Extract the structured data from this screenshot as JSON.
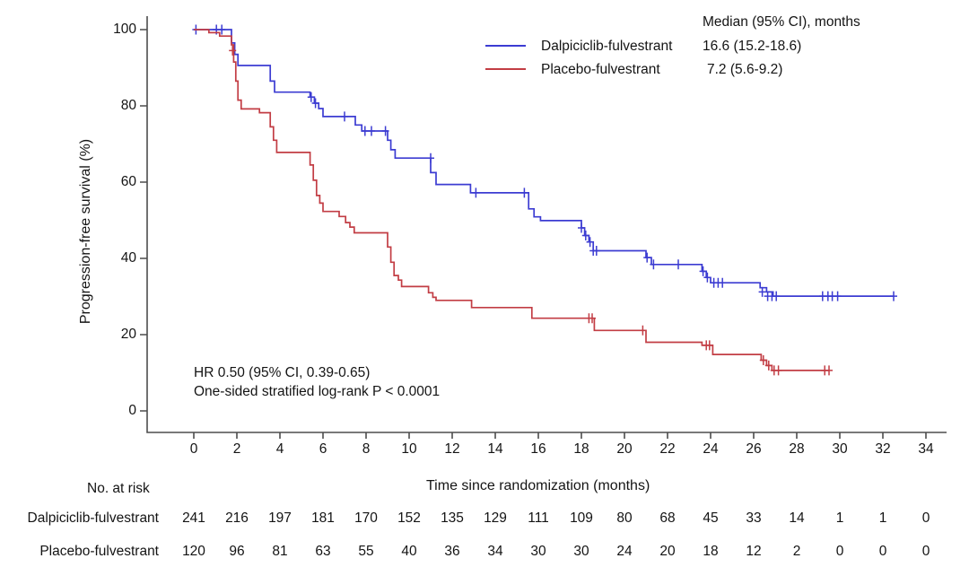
{
  "figure": {
    "y_axis": {
      "label": "Progression-free survival (%)",
      "ticks": [
        0,
        20,
        40,
        60,
        80,
        100
      ]
    },
    "x_axis": {
      "label": "Time since randomization (months)",
      "ticks": [
        0,
        2,
        4,
        6,
        8,
        10,
        12,
        14,
        16,
        18,
        20,
        22,
        24,
        26,
        28,
        30,
        32,
        34
      ]
    },
    "legend": {
      "header": "Median (95% CI), months",
      "entries": [
        {
          "name": "Dalpiciclib-fulvestrant",
          "median": "16.6 (15.2-18.6)",
          "color": "#3c3cd2"
        },
        {
          "name": "Placebo-fulvestrant",
          "median": "7.2 (5.6-9.2)",
          "color": "#c23d44"
        }
      ]
    },
    "annotations": [
      "HR 0.50 (95% CI, 0.39-0.65)",
      "One-sided stratified log-rank P < 0.0001"
    ],
    "risk_table": {
      "title": "No. at risk",
      "rows": [
        {
          "name": "Dalpiciclib-fulvestrant",
          "values": [
            241,
            216,
            197,
            181,
            170,
            152,
            135,
            129,
            111,
            109,
            80,
            68,
            45,
            33,
            14,
            1,
            1,
            0
          ]
        },
        {
          "name": "Placebo-fulvestrant",
          "values": [
            120,
            96,
            81,
            63,
            55,
            40,
            36,
            34,
            30,
            30,
            24,
            20,
            18,
            12,
            2,
            0,
            0,
            0
          ]
        }
      ]
    },
    "colors": {
      "axis": "#4d4d4d",
      "text": "#141414"
    }
  },
  "chart_data": {
    "type": "line",
    "subtype": "kaplan-meier-step",
    "title": "",
    "xlabel": "Time since randomization (months)",
    "ylabel": "Progression-free survival (%)",
    "xlim": [
      0,
      34
    ],
    "ylim": [
      0,
      100
    ],
    "grid": false,
    "legend_position": "top-right",
    "x_ticks": [
      0,
      2,
      4,
      6,
      8,
      10,
      12,
      14,
      16,
      18,
      20,
      22,
      24,
      26,
      28,
      30,
      32,
      34
    ],
    "y_ticks": [
      0,
      20,
      40,
      60,
      80,
      100
    ],
    "series": [
      {
        "id": "dalpiciclib",
        "name": "Dalpiciclib-fulvestrant",
        "color": "#3c3cd2",
        "median_months": "16.6 (15.2-18.6)",
        "start": [
          0,
          100
        ],
        "end_time": 32.5,
        "steps": [
          [
            1.75,
            96.5
          ],
          [
            1.9,
            93.5
          ],
          [
            2.05,
            90.6
          ],
          [
            3.55,
            86.5
          ],
          [
            3.75,
            83.6
          ],
          [
            5.4,
            82.3
          ],
          [
            5.6,
            80.7
          ],
          [
            5.8,
            79.3
          ],
          [
            6.0,
            77.2
          ],
          [
            7.5,
            75.0
          ],
          [
            7.8,
            73.4
          ],
          [
            9.0,
            71.0
          ],
          [
            9.15,
            68.5
          ],
          [
            9.35,
            66.3
          ],
          [
            11.0,
            62.5
          ],
          [
            11.25,
            59.4
          ],
          [
            12.85,
            57.2
          ],
          [
            15.55,
            53.0
          ],
          [
            15.8,
            50.9
          ],
          [
            16.1,
            49.9
          ],
          [
            18.0,
            48.0
          ],
          [
            18.15,
            46.0
          ],
          [
            18.35,
            44.3
          ],
          [
            18.55,
            42.0
          ],
          [
            21.0,
            40.2
          ],
          [
            21.25,
            38.4
          ],
          [
            23.6,
            36.6
          ],
          [
            23.8,
            35.0
          ],
          [
            24.0,
            33.6
          ],
          [
            26.3,
            32.3
          ],
          [
            26.6,
            31.2
          ],
          [
            26.9,
            30.1
          ]
        ],
        "censors": [
          [
            0.1,
            100
          ],
          [
            1.05,
            100
          ],
          [
            1.3,
            100
          ],
          [
            5.45,
            82.3
          ],
          [
            5.65,
            80.7
          ],
          [
            7.0,
            77.2
          ],
          [
            7.95,
            73.4
          ],
          [
            8.25,
            73.4
          ],
          [
            8.9,
            73.4
          ],
          [
            11.0,
            66.3
          ],
          [
            13.1,
            57.2
          ],
          [
            15.35,
            57.2
          ],
          [
            18.0,
            48.0
          ],
          [
            18.2,
            46.0
          ],
          [
            18.4,
            44.3
          ],
          [
            18.55,
            42.0
          ],
          [
            18.7,
            42.0
          ],
          [
            21.05,
            40.2
          ],
          [
            21.35,
            38.4
          ],
          [
            22.5,
            38.4
          ],
          [
            23.65,
            36.6
          ],
          [
            23.85,
            35.0
          ],
          [
            24.15,
            33.6
          ],
          [
            24.35,
            33.6
          ],
          [
            24.55,
            33.6
          ],
          [
            26.4,
            31.2
          ],
          [
            26.65,
            30.1
          ],
          [
            26.85,
            30.1
          ],
          [
            27.05,
            30.1
          ],
          [
            29.2,
            30.1
          ],
          [
            29.45,
            30.1
          ],
          [
            29.65,
            30.1
          ],
          [
            29.9,
            30.1
          ],
          [
            32.5,
            30.1
          ]
        ]
      },
      {
        "id": "placebo",
        "name": "Placebo-fulvestrant",
        "color": "#c23d44",
        "median_months": "7.2 (5.6-9.2)",
        "start": [
          0,
          100
        ],
        "end_time": 29.5,
        "steps": [
          [
            0.7,
            99.2
          ],
          [
            1.2,
            98.3
          ],
          [
            1.75,
            96.0
          ],
          [
            1.85,
            91.5
          ],
          [
            1.95,
            86.5
          ],
          [
            2.05,
            81.5
          ],
          [
            2.2,
            79.2
          ],
          [
            3.05,
            78.2
          ],
          [
            3.55,
            74.5
          ],
          [
            3.7,
            71.0
          ],
          [
            3.85,
            67.8
          ],
          [
            5.4,
            64.5
          ],
          [
            5.55,
            60.5
          ],
          [
            5.7,
            56.5
          ],
          [
            5.85,
            54.5
          ],
          [
            6.0,
            52.3
          ],
          [
            6.75,
            51.0
          ],
          [
            7.05,
            49.4
          ],
          [
            7.25,
            48.2
          ],
          [
            7.45,
            46.7
          ],
          [
            9.0,
            43.0
          ],
          [
            9.15,
            39.0
          ],
          [
            9.3,
            35.5
          ],
          [
            9.5,
            34.3
          ],
          [
            9.65,
            32.6
          ],
          [
            10.9,
            31.0
          ],
          [
            11.1,
            29.8
          ],
          [
            11.25,
            29.0
          ],
          [
            12.9,
            27.1
          ],
          [
            15.7,
            24.3
          ],
          [
            18.6,
            21.1
          ],
          [
            21.0,
            18.0
          ],
          [
            23.6,
            17.2
          ],
          [
            24.1,
            14.8
          ],
          [
            26.35,
            13.3
          ],
          [
            26.6,
            11.9
          ],
          [
            26.85,
            10.6
          ]
        ],
        "censors": [
          [
            1.8,
            94.5
          ],
          [
            18.35,
            24.3
          ],
          [
            18.5,
            24.3
          ],
          [
            20.85,
            21.1
          ],
          [
            23.8,
            17.2
          ],
          [
            23.95,
            17.2
          ],
          [
            26.45,
            13.3
          ],
          [
            26.7,
            11.9
          ],
          [
            26.95,
            10.6
          ],
          [
            27.15,
            10.6
          ],
          [
            29.3,
            10.6
          ],
          [
            29.5,
            10.6
          ]
        ]
      }
    ]
  }
}
